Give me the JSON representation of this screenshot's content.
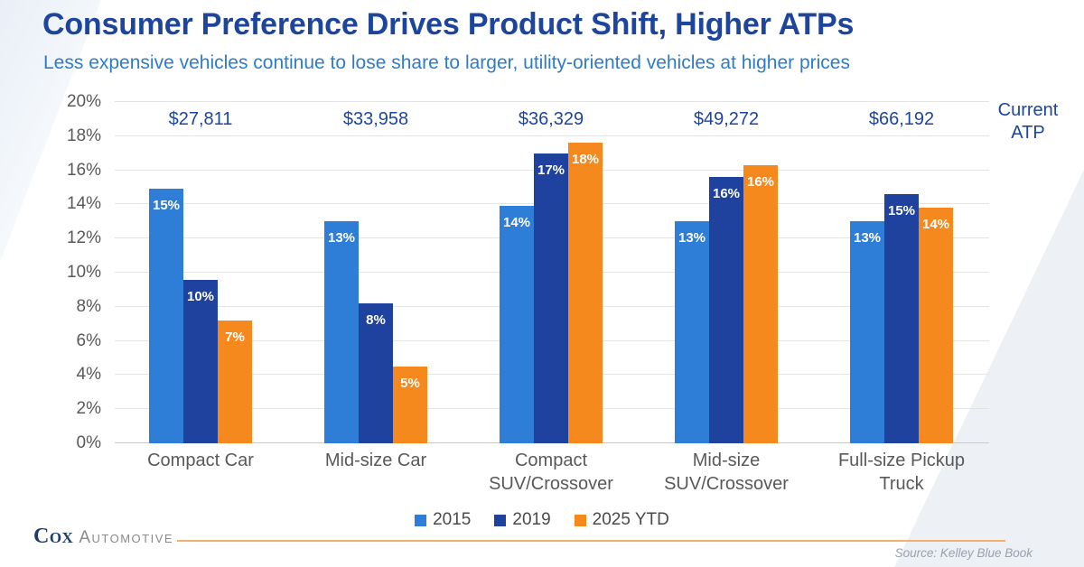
{
  "header": {
    "title": "Consumer Preference Drives Product Shift, Higher ATPs",
    "subtitle": "Less expensive vehicles continue to lose share to larger, utility-oriented vehicles at higher prices"
  },
  "chart_data": {
    "type": "bar",
    "title": "Consumer Preference Drives Product Shift, Higher ATPs",
    "categories": [
      "Compact Car",
      "Mid-size Car",
      "Compact SUV/Crossover",
      "Mid-size SUV/Crossover",
      "Full-size Pickup Truck"
    ],
    "category_lines": [
      [
        "Compact Car"
      ],
      [
        "Mid-size Car"
      ],
      [
        "Compact",
        "SUV/Crossover"
      ],
      [
        "Mid-size",
        "SUV/Crossover"
      ],
      [
        "Full-size Pickup",
        "Truck"
      ]
    ],
    "series": [
      {
        "name": "2015",
        "color": "#2E7DD7",
        "values": [
          14.9,
          13.0,
          13.9,
          13.0,
          13.0
        ],
        "labels": [
          "15%",
          "13%",
          "14%",
          "13%",
          "13%"
        ]
      },
      {
        "name": "2019",
        "color": "#1F429E",
        "values": [
          9.6,
          8.2,
          17.0,
          15.6,
          14.6
        ],
        "labels": [
          "10%",
          "8%",
          "17%",
          "16%",
          "15%"
        ]
      },
      {
        "name": "2025 YTD",
        "color": "#F5891D",
        "values": [
          7.2,
          4.5,
          17.6,
          16.3,
          13.8
        ],
        "labels": [
          "7%",
          "5%",
          "18%",
          "16%",
          "14%"
        ]
      }
    ],
    "current_atp": {
      "label": "Current ATP",
      "label_lines": [
        "Current",
        "ATP"
      ],
      "values": [
        "$27,811",
        "$33,958",
        "$36,329",
        "$49,272",
        "$66,192"
      ]
    },
    "y_axis": {
      "min": 0,
      "max": 20,
      "step": 2,
      "suffix": "%"
    },
    "xlabel": "",
    "ylabel": "",
    "ylim": [
      0,
      20
    ],
    "grid": true,
    "legend_position": "bottom"
  },
  "footer": {
    "logo_cox": "Cox",
    "logo_automotive": "Automotive",
    "source": "Source: Kelley Blue Book"
  },
  "colors": {
    "title_blue": "#1e459c",
    "subtitle_blue": "#2e7cc8",
    "series_2015": "#2E7DD7",
    "series_2019": "#1F429E",
    "series_2025": "#F5891D",
    "axis_text_gray": "#595959",
    "gridline": "#e4e4e4",
    "footer_rule_orange": "#edb06f",
    "cox_navy": "#1e3a6e",
    "source_gray": "#9aa1ad"
  }
}
